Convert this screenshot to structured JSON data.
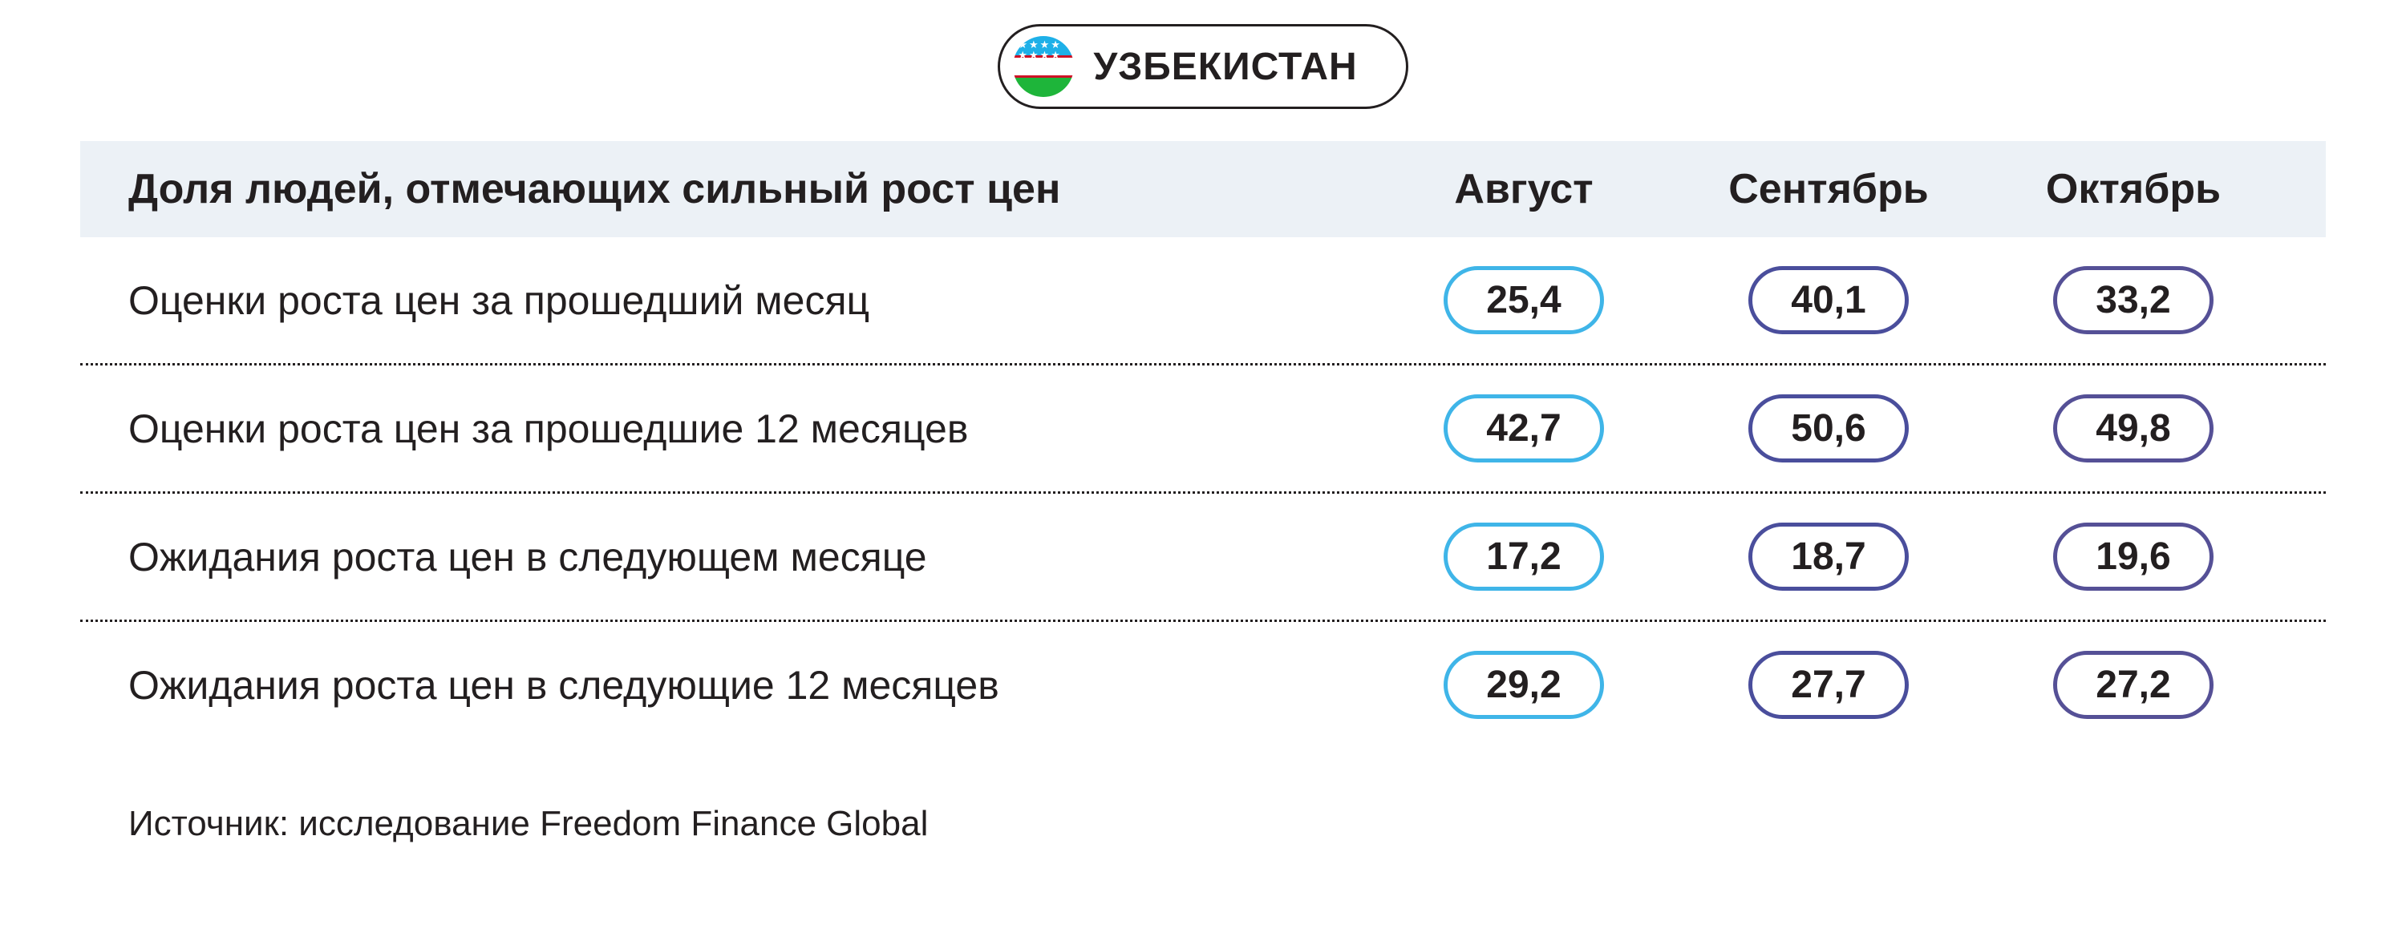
{
  "country": {
    "name": "УЗБЕКИСТАН",
    "flag_colors": {
      "top": "#1eb0e8",
      "middle": "#ffffff",
      "bottom": "#1eb53a",
      "line": "#ce1126"
    }
  },
  "table": {
    "type": "table",
    "header_bg": "#ecf1f6",
    "columns": {
      "label": "Доля людей, отмечающих сильный рост цен",
      "months": [
        {
          "name": "Август",
          "pill_border": "#3fb5e8"
        },
        {
          "name": "Сентябрь",
          "pill_border": "#4a4e9c"
        },
        {
          "name": "Октябрь",
          "pill_border": "#555096"
        }
      ]
    },
    "rows": [
      {
        "label": "Оценки роста цен за прошедший месяц",
        "values": [
          "25,4",
          "40,1",
          "33,2"
        ]
      },
      {
        "label": "Оценки роста цен за прошедшие 12 месяцев",
        "values": [
          "42,7",
          "50,6",
          "49,8"
        ]
      },
      {
        "label": "Ожидания роста цен в следующем месяце",
        "values": [
          "17,2",
          "18,7",
          "19,6"
        ]
      },
      {
        "label": "Ожидания роста цен в следующие 12 месяцев",
        "values": [
          "29,2",
          "27,7",
          "27,2"
        ]
      }
    ],
    "header_fontsize": 52,
    "label_fontsize": 50,
    "value_fontsize": 48,
    "pill_border_width": 5,
    "divider_color": "#231f20"
  },
  "source": "Источник: исследование Freedom Finance Global"
}
